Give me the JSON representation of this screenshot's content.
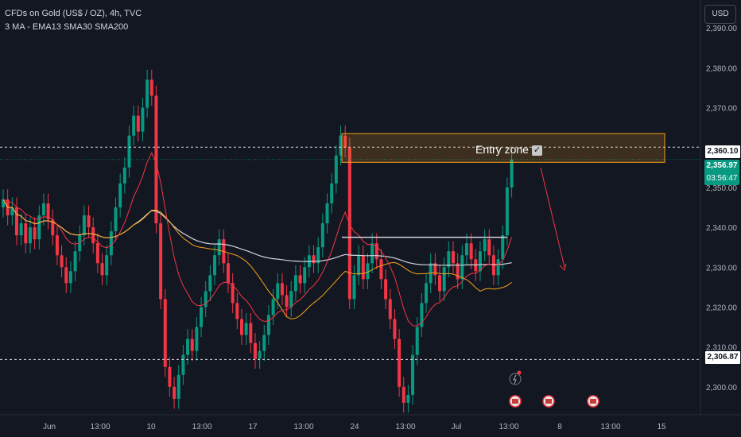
{
  "header": {
    "symbol_line": "CFDs on Gold (US$ / OZ), 4h, TVC",
    "indicators_line": "3 MA - EMA13 SMA30 SMA200"
  },
  "currency": "USD",
  "price_labels": {
    "upper": "2,360.10",
    "current": "2,356.97",
    "countdown": "03:56:47",
    "lower": "2,306.87"
  },
  "annotation": {
    "zone_label": "Entry zone",
    "check": "✓",
    "zone_low": 2356.3,
    "zone_high": 2363.5
  },
  "colors": {
    "background": "#131722",
    "bull": "#089981",
    "bear": "#f23645",
    "zone_border": "#f7a21b",
    "ema13": "#f23645",
    "sma30": "#f7a21b",
    "sma200": "#d1d4dc"
  },
  "chart_data": {
    "type": "candlestick",
    "title": "CFDs on Gold (US$ / OZ), 4h, TVC",
    "ylim": [
      2293,
      2397
    ],
    "y_ticks": [
      2300,
      2310,
      2320,
      2330,
      2340,
      2350,
      2360,
      2370,
      2380,
      2390
    ],
    "y_tick_labels": [
      "2,300.00",
      "2,310.00",
      "2,320.00",
      "2,330.00",
      "2,340.00",
      "2,350.00",
      "2,360.00",
      "2,370.00",
      "2,380.00",
      "2,390.00"
    ],
    "x_tick_labels": [
      "Jun",
      "13:00",
      "10",
      "13:00",
      "17",
      "13:00",
      "24",
      "13:00",
      "Jul",
      "13:00",
      "8",
      "13:00",
      "15"
    ],
    "closes": [
      2347,
      2343,
      2345,
      2338,
      2341,
      2336,
      2340,
      2337,
      2343,
      2346,
      2342,
      2338,
      2333,
      2330,
      2326,
      2329,
      2334,
      2338,
      2343,
      2340,
      2336,
      2331,
      2328,
      2333,
      2339,
      2345,
      2351,
      2355,
      2363,
      2368,
      2364,
      2370,
      2377,
      2373,
      2341,
      2322,
      2305,
      2300,
      2297,
      2303,
      2308,
      2312,
      2309,
      2315,
      2320,
      2324,
      2328,
      2333,
      2337,
      2331,
      2326,
      2321,
      2317,
      2313,
      2316,
      2311,
      2307,
      2309,
      2313,
      2318,
      2322,
      2326,
      2323,
      2320,
      2324,
      2328,
      2326,
      2330,
      2333,
      2331,
      2335,
      2341,
      2346,
      2351,
      2358,
      2363,
      2360,
      2322,
      2328,
      2333,
      2327,
      2331,
      2336,
      2332,
      2327,
      2322,
      2317,
      2312,
      2300,
      2296,
      2298,
      2308,
      2315,
      2321,
      2326,
      2331,
      2328,
      2324,
      2330,
      2334,
      2331,
      2327,
      2333,
      2336,
      2332,
      2329,
      2334,
      2337,
      2333,
      2328,
      2332,
      2338,
      2350,
      2357
    ],
    "moving_averages": [
      {
        "name": "EMA13",
        "color": "#f23645"
      },
      {
        "name": "SMA30",
        "color": "#f7a21b"
      },
      {
        "name": "SMA200",
        "color": "#d1d4dc"
      }
    ],
    "horizontal_lines": [
      2360.1,
      2306.87
    ],
    "grid": false
  }
}
